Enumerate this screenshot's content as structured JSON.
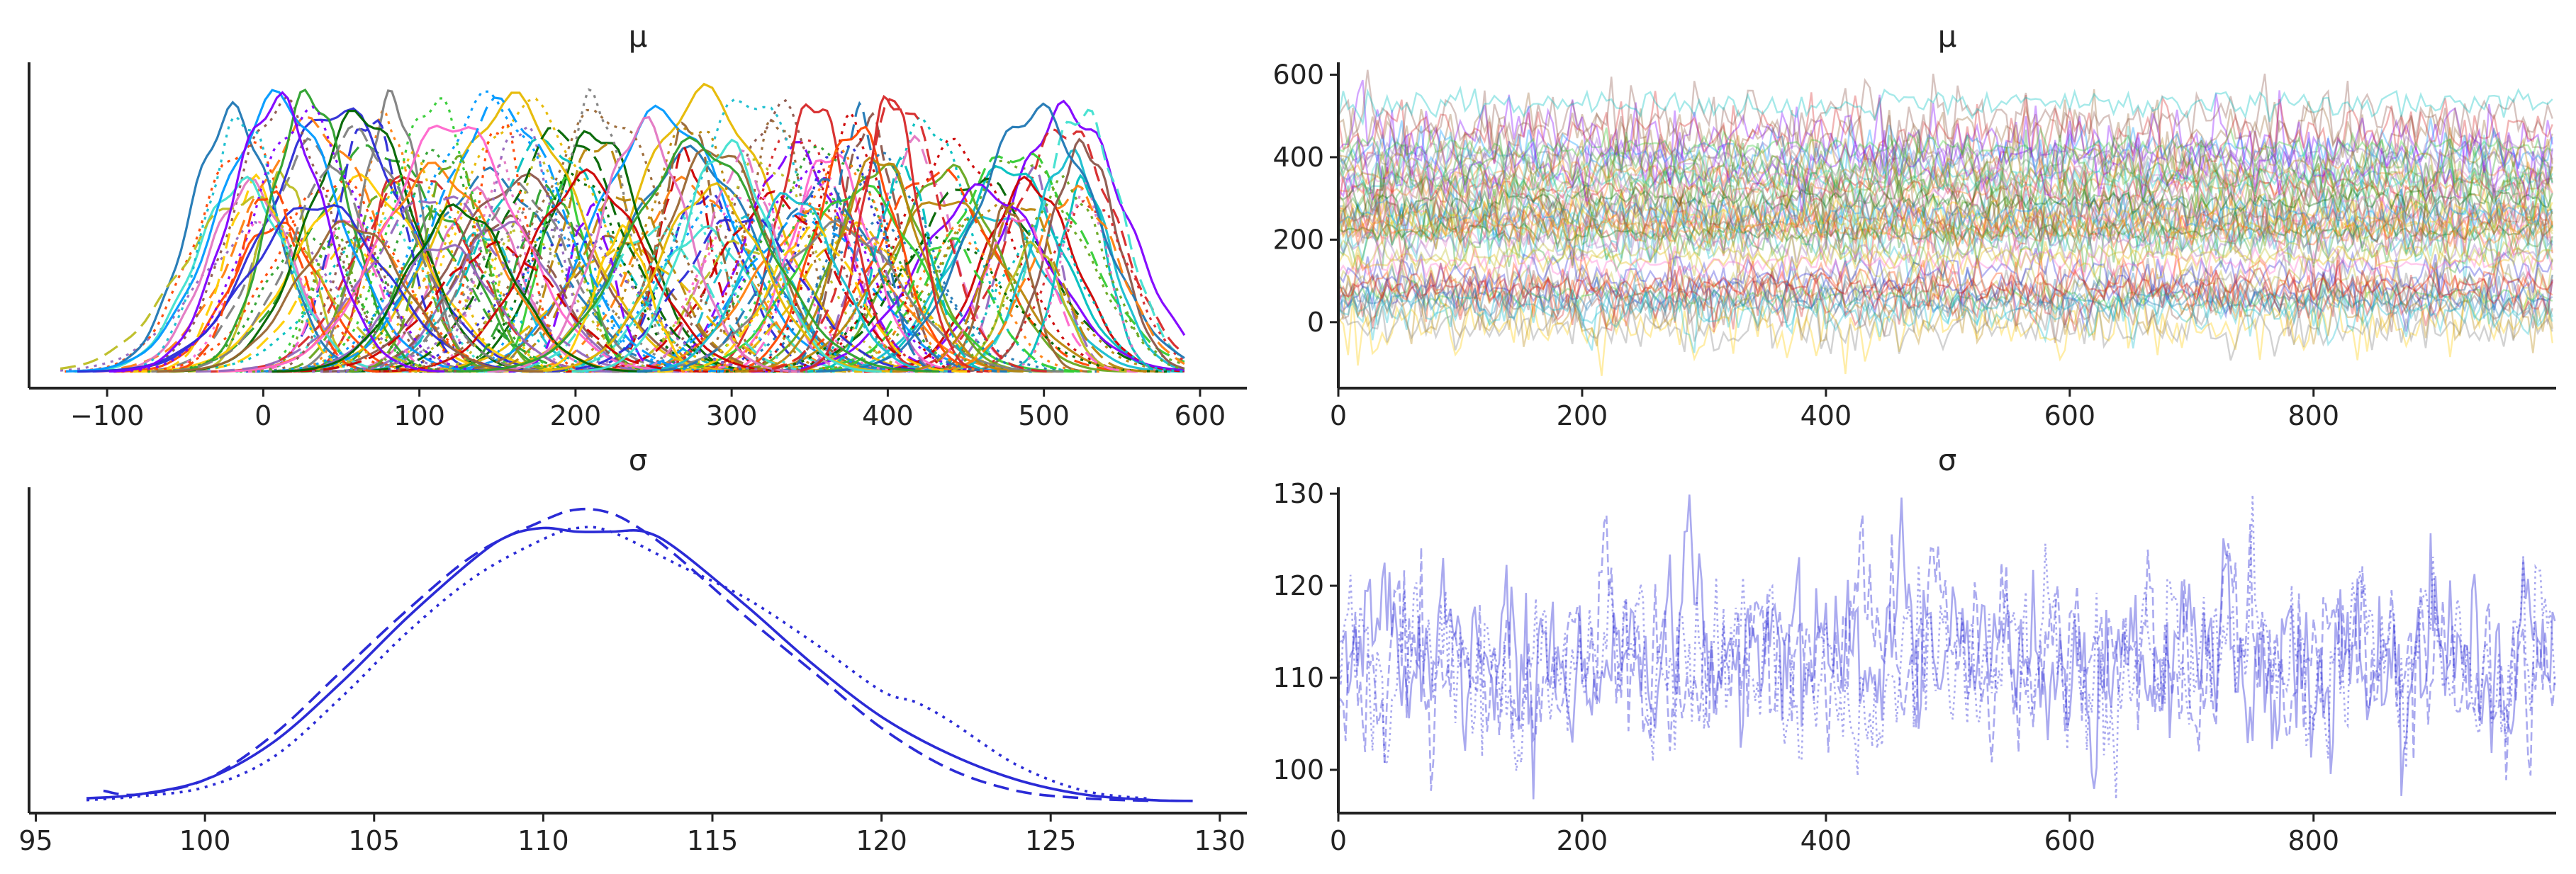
{
  "chart_data": [
    {
      "id": "mu-density",
      "type": "line",
      "title": "μ",
      "xlabel": "",
      "ylabel": "",
      "xlim": [
        -150,
        630
      ],
      "x_ticks": [
        -100,
        0,
        100,
        200,
        300,
        400,
        500,
        600
      ],
      "y_ticks_shown": false,
      "n_curves": 180,
      "curve_center_range": [
        -20,
        530
      ],
      "curve_sd_range": [
        14,
        45
      ],
      "support": [
        -130,
        590
      ],
      "peak_density_max": 0.0155,
      "line_styles": [
        "solid",
        "dashed",
        "dotted"
      ],
      "grid": false
    },
    {
      "id": "mu-trace",
      "type": "line",
      "title": "μ",
      "xlabel": "",
      "ylabel": "",
      "xlim": [
        0,
        999
      ],
      "ylim": [
        -160,
        630
      ],
      "x_ticks": [
        0,
        200,
        400,
        600,
        800
      ],
      "y_ticks": [
        0,
        200,
        400,
        600
      ],
      "n_draws": 1000,
      "band_center_range": [
        -20,
        530
      ],
      "band_spread_range": [
        14,
        45
      ],
      "alpha": 0.35,
      "grid": false
    },
    {
      "id": "sigma-density",
      "type": "line",
      "title": "σ",
      "xlabel": "",
      "ylabel": "",
      "xlim": [
        94.8,
        130.8
      ],
      "x_ticks": [
        95,
        100,
        105,
        110,
        115,
        120,
        125,
        130
      ],
      "y_ticks_shown": false,
      "color": "#2b2bd6",
      "series": [
        {
          "style": "solid",
          "x": [
            96.5,
            98,
            100,
            102,
            104,
            106,
            108,
            109,
            110,
            111,
            112,
            113,
            114,
            116,
            118,
            120,
            122,
            124,
            126,
            128,
            129.2
          ],
          "y": [
            0.001,
            0.002,
            0.006,
            0.016,
            0.032,
            0.05,
            0.066,
            0.072,
            0.074,
            0.073,
            0.073,
            0.073,
            0.068,
            0.053,
            0.037,
            0.023,
            0.013,
            0.006,
            0.002,
            0.0005,
            0.0003
          ]
        },
        {
          "style": "dashed",
          "x": [
            97,
            98,
            100,
            102,
            104,
            106,
            108,
            110,
            111,
            112,
            113,
            114,
            116,
            118,
            120,
            122,
            124,
            126,
            128
          ],
          "y": [
            0.003,
            0.002,
            0.006,
            0.018,
            0.035,
            0.052,
            0.067,
            0.076,
            0.079,
            0.078,
            0.073,
            0.066,
            0.05,
            0.035,
            0.02,
            0.009,
            0.003,
            0.001,
            0.0003
          ]
        },
        {
          "style": "dotted",
          "x": [
            96.5,
            98,
            100,
            102,
            104,
            106,
            108,
            110,
            111,
            112,
            114,
            116,
            118,
            120,
            121,
            122,
            124,
            126,
            128
          ],
          "y": [
            0.0005,
            0.0015,
            0.004,
            0.012,
            0.028,
            0.046,
            0.061,
            0.071,
            0.074,
            0.073,
            0.064,
            0.055,
            0.043,
            0.03,
            0.027,
            0.022,
            0.01,
            0.003,
            0.0008
          ]
        }
      ],
      "ylim": [
        -0.003,
        0.085
      ],
      "grid": false
    },
    {
      "id": "sigma-trace",
      "type": "line",
      "title": "σ",
      "xlabel": "",
      "ylabel": "",
      "xlim": [
        0,
        999
      ],
      "ylim": [
        95.3,
        130.7
      ],
      "x_ticks": [
        0,
        200,
        400,
        600,
        800
      ],
      "y_ticks": [
        100,
        110,
        120,
        130
      ],
      "n_draws": 1000,
      "mean": 111.5,
      "sd": 5.2,
      "color": "#2b2bd6",
      "alpha": 0.4,
      "series_styles": [
        "solid",
        "dashed",
        "dotted"
      ],
      "grid": false
    }
  ]
}
